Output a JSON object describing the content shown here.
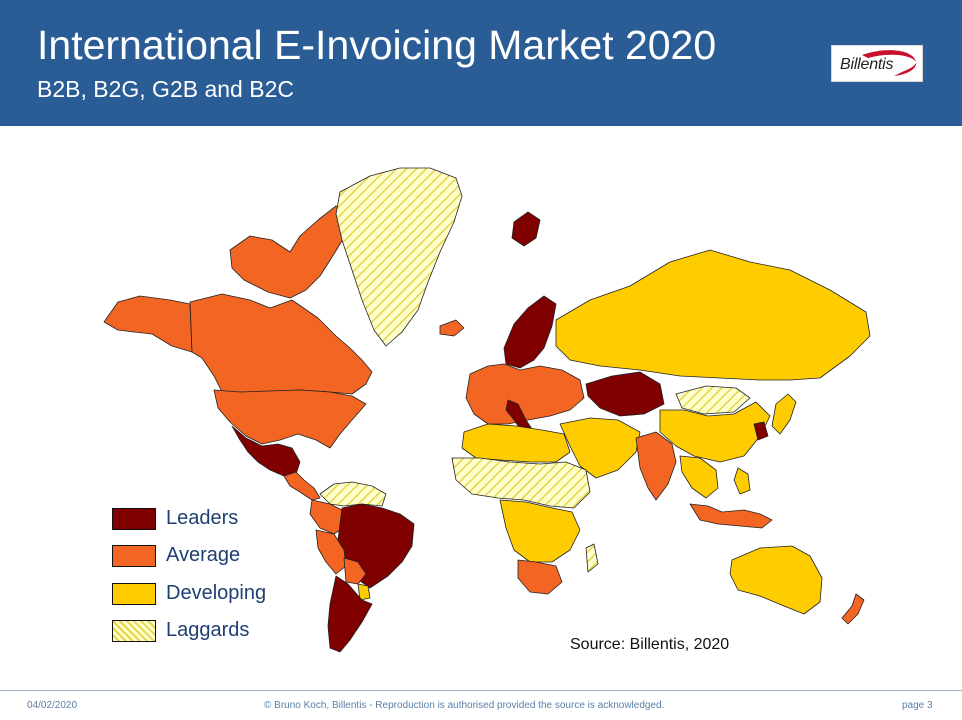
{
  "header": {
    "title": "International E-Invoicing Market 2020",
    "subtitle": "B2B, B2G, G2B and B2C",
    "logo_text": "Billentis"
  },
  "colors": {
    "header_bg": "#2a5d96",
    "leaders": "#800000",
    "average": "#f26522",
    "developing": "#ffcc00",
    "laggards": "#ffffcc",
    "laggards_hatch": "#e8d24a"
  },
  "legend": {
    "items": [
      {
        "key": "leaders",
        "label": "Leaders"
      },
      {
        "key": "average",
        "label": "Average"
      },
      {
        "key": "developing",
        "label": "Developing"
      },
      {
        "key": "laggards",
        "label": "Laggards"
      }
    ]
  },
  "map": {
    "regions": [
      {
        "name": "canada-region",
        "category": "average"
      },
      {
        "name": "usa-region",
        "category": "average"
      },
      {
        "name": "alaska-region",
        "category": "average"
      },
      {
        "name": "arctic-islands-region",
        "category": "average"
      },
      {
        "name": "greenland-region",
        "category": "laggards"
      },
      {
        "name": "mexico-region",
        "category": "leaders"
      },
      {
        "name": "central-america-region",
        "category": "average"
      },
      {
        "name": "venezuela-region",
        "category": "laggards"
      },
      {
        "name": "colombia-region",
        "category": "average"
      },
      {
        "name": "peru-region",
        "category": "average"
      },
      {
        "name": "brazil-region",
        "category": "leaders"
      },
      {
        "name": "chile-argentina-region",
        "category": "leaders"
      },
      {
        "name": "bolivia-region",
        "category": "average"
      },
      {
        "name": "paraguay-region",
        "category": "developing"
      },
      {
        "name": "scandinavia-region",
        "category": "leaders"
      },
      {
        "name": "svalbard-region",
        "category": "leaders"
      },
      {
        "name": "iceland-region",
        "category": "average"
      },
      {
        "name": "europe-region",
        "category": "average"
      },
      {
        "name": "italy-region",
        "category": "leaders"
      },
      {
        "name": "russia-region",
        "category": "developing"
      },
      {
        "name": "kazakhstan-region",
        "category": "leaders"
      },
      {
        "name": "mongolia-region",
        "category": "laggards"
      },
      {
        "name": "china-region",
        "category": "developing"
      },
      {
        "name": "india-region",
        "category": "average"
      },
      {
        "name": "middle-east-region",
        "category": "developing"
      },
      {
        "name": "north-africa-region",
        "category": "developing"
      },
      {
        "name": "africa-laggard-region",
        "category": "laggards"
      },
      {
        "name": "central-africa-region",
        "category": "developing"
      },
      {
        "name": "south-africa-region",
        "category": "average"
      },
      {
        "name": "madagascar-region",
        "category": "laggards"
      },
      {
        "name": "southeast-asia-region",
        "category": "developing"
      },
      {
        "name": "indonesia-region",
        "category": "average"
      },
      {
        "name": "korea-region",
        "category": "leaders"
      },
      {
        "name": "japan-region",
        "category": "developing"
      },
      {
        "name": "philippines-region",
        "category": "developing"
      },
      {
        "name": "australia-region",
        "category": "developing"
      },
      {
        "name": "new-zealand-region",
        "category": "average"
      }
    ]
  },
  "source": "Source: Billentis, 2020",
  "footer": {
    "date": "04/02/2020",
    "copyright": "© Bruno Koch, Billentis  -  Reproduction is authorised provided the source is acknowledged.",
    "page": "page 3"
  }
}
